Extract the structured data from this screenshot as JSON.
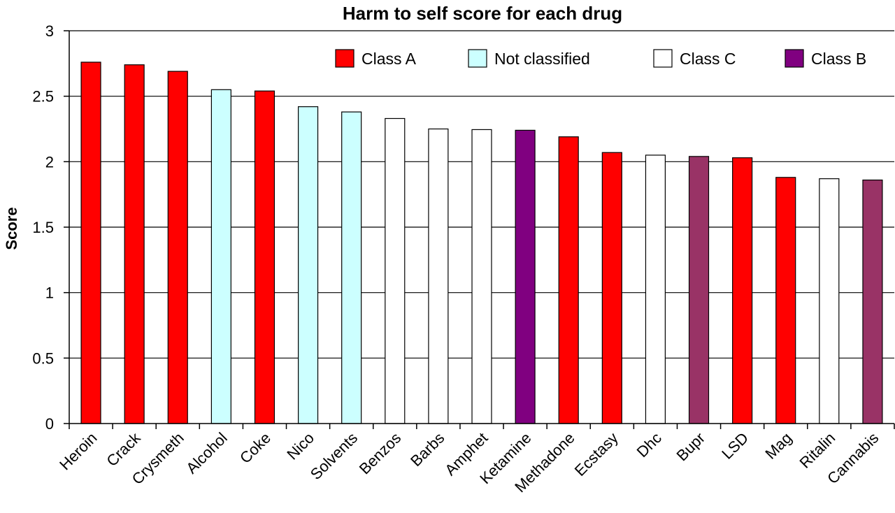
{
  "chart_data": {
    "type": "bar",
    "title": "Harm to self score for each drug",
    "xlabel": "",
    "ylabel": "Score",
    "ylim": [
      0,
      3
    ],
    "yticks": [
      0,
      0.5,
      1,
      1.5,
      2,
      2.5,
      3
    ],
    "ytick_labels": [
      "0",
      "0.5",
      "1",
      "1.5",
      "2",
      "2.5",
      "3"
    ],
    "grid": true,
    "legend_position": "top-right",
    "legend": [
      {
        "label": "Class A",
        "color": "#FF0000"
      },
      {
        "label": "Not classified",
        "color": "#CCFFFF"
      },
      {
        "label": "Class C",
        "color": "#FFFFFF"
      },
      {
        "label": "Class B",
        "color": "#800080"
      }
    ],
    "categories": [
      "Heroin",
      "Crack",
      "Crysmeth",
      "Alcohol",
      "Coke",
      "Nico",
      "Solvents",
      "Benzos",
      "Barbs",
      "Amphet",
      "Ketamine",
      "Methadone",
      "Ecstasy",
      "Dhc",
      "Bupr",
      "LSD",
      "Mag",
      "Ritalin",
      "Cannabis"
    ],
    "values": [
      2.76,
      2.74,
      2.69,
      2.55,
      2.54,
      2.42,
      2.38,
      2.33,
      2.25,
      2.245,
      2.24,
      2.19,
      2.07,
      2.05,
      2.04,
      2.03,
      1.88,
      1.87,
      1.86
    ],
    "colors": [
      "#FF0000",
      "#FF0000",
      "#FF0000",
      "#CCFFFF",
      "#FF0000",
      "#CCFFFF",
      "#CCFFFF",
      "#FFFFFF",
      "#FFFFFF",
      "#FFFFFF",
      "#800080",
      "#FF0000",
      "#FF0000",
      "#FFFFFF",
      "#993366",
      "#FF0000",
      "#FF0000",
      "#FFFFFF",
      "#993366"
    ]
  }
}
